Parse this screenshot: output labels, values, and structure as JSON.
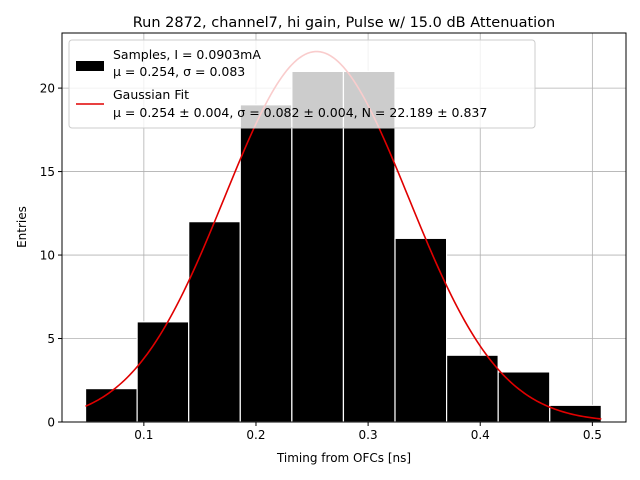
{
  "chart_data": {
    "type": "bar",
    "title": "Run 2872, channel7, hi gain, Pulse w/ 15.0 dB Attenuation",
    "xlabel": "Timing from OFCs [ns]",
    "ylabel": "Entries",
    "xlim": [
      0.027,
      0.53
    ],
    "ylim": [
      0,
      23.3
    ],
    "xticks": [
      0.1,
      0.2,
      0.3,
      0.4,
      0.5
    ],
    "xtick_labels": [
      "0.1",
      "0.2",
      "0.3",
      "0.4",
      "0.5"
    ],
    "yticks": [
      0,
      5,
      10,
      15,
      20
    ],
    "ytick_labels": [
      "0",
      "5",
      "10",
      "15",
      "20"
    ],
    "grid": true,
    "legend_position": "top-left",
    "bins": [
      {
        "x0": 0.048,
        "x1": 0.094,
        "count": 2
      },
      {
        "x0": 0.094,
        "x1": 0.14,
        "count": 6
      },
      {
        "x0": 0.14,
        "x1": 0.186,
        "count": 12
      },
      {
        "x0": 0.186,
        "x1": 0.232,
        "count": 19
      },
      {
        "x0": 0.232,
        "x1": 0.278,
        "count": 21
      },
      {
        "x0": 0.278,
        "x1": 0.324,
        "count": 21
      },
      {
        "x0": 0.324,
        "x1": 0.37,
        "count": 11
      },
      {
        "x0": 0.37,
        "x1": 0.416,
        "count": 4
      },
      {
        "x0": 0.416,
        "x1": 0.462,
        "count": 3
      },
      {
        "x0": 0.462,
        "x1": 0.508,
        "count": 1
      }
    ],
    "fit": {
      "mu": 0.254,
      "sigma": 0.082,
      "N": 22.189,
      "x_range": [
        0.048,
        0.508
      ]
    },
    "colors": {
      "bar": "#000000",
      "bar_edge": "#ffffff",
      "fit_line": "#e00000",
      "grid": "#b0b0b0"
    },
    "legend": [
      {
        "kind": "patch",
        "line1": "Samples, I = 0.0903mA",
        "line2": "μ = 0.254, σ = 0.083"
      },
      {
        "kind": "line",
        "line1": "Gaussian Fit",
        "line2": "μ = 0.254 ± 0.004, σ = 0.082 ± 0.004, N = 22.189 ± 0.837"
      }
    ]
  }
}
